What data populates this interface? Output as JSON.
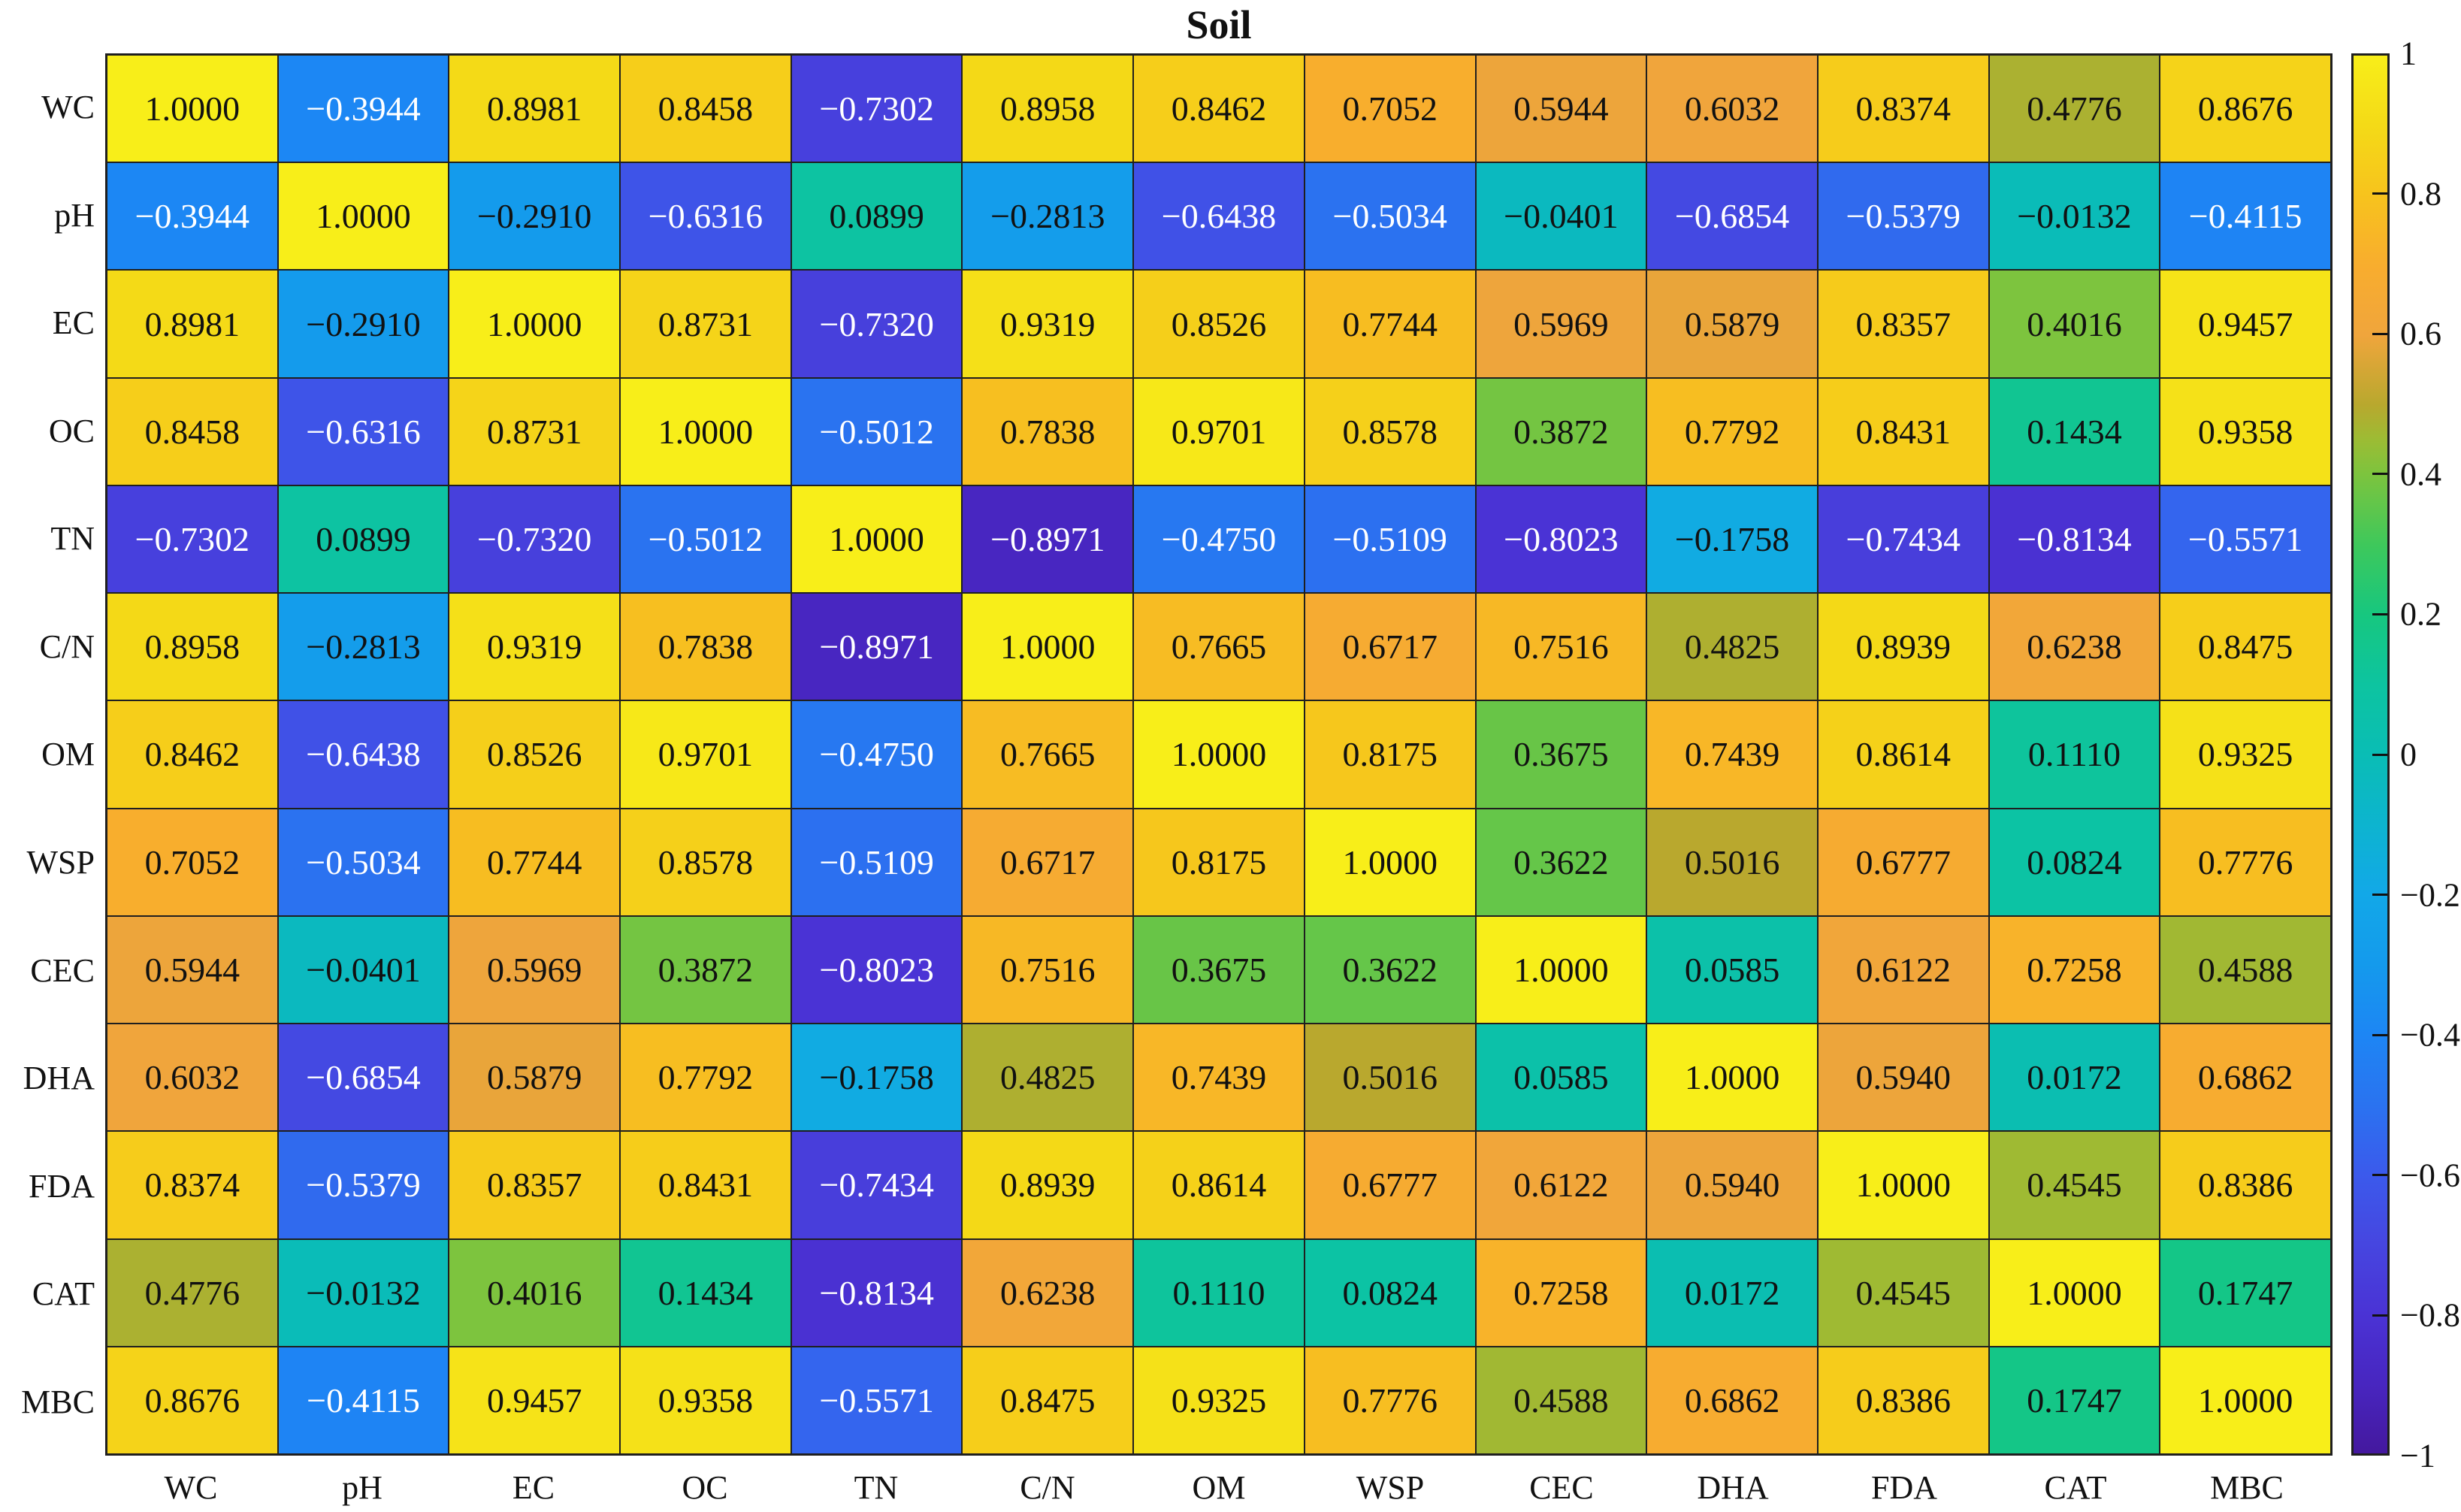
{
  "title": "Soil",
  "chart_data": {
    "type": "heatmap",
    "title": "Soil",
    "categories": [
      "WC",
      "pH",
      "EC",
      "OC",
      "TN",
      "C/N",
      "OM",
      "WSP",
      "CEC",
      "DHA",
      "FDA",
      "CAT",
      "MBC"
    ],
    "matrix": [
      [
        1.0,
        -0.3944,
        0.8981,
        0.8458,
        -0.7302,
        0.8958,
        0.8462,
        0.7052,
        0.5944,
        0.6032,
        0.8374,
        0.4776,
        0.8676
      ],
      [
        -0.3944,
        1.0,
        -0.291,
        -0.6316,
        0.0899,
        -0.2813,
        -0.6438,
        -0.5034,
        -0.0401,
        -0.6854,
        -0.5379,
        -0.0132,
        -0.4115
      ],
      [
        0.8981,
        -0.291,
        1.0,
        0.8731,
        -0.732,
        0.9319,
        0.8526,
        0.7744,
        0.5969,
        0.5879,
        0.8357,
        0.4016,
        0.9457
      ],
      [
        0.8458,
        -0.6316,
        0.8731,
        1.0,
        -0.5012,
        0.7838,
        0.9701,
        0.8578,
        0.3872,
        0.7792,
        0.8431,
        0.1434,
        0.9358
      ],
      [
        -0.7302,
        0.0899,
        -0.732,
        -0.5012,
        1.0,
        -0.8971,
        -0.475,
        -0.5109,
        -0.8023,
        -0.1758,
        -0.7434,
        -0.8134,
        -0.5571
      ],
      [
        0.8958,
        -0.2813,
        0.9319,
        0.7838,
        -0.8971,
        1.0,
        0.7665,
        0.6717,
        0.7516,
        0.4825,
        0.8939,
        0.6238,
        0.8475
      ],
      [
        0.8462,
        -0.6438,
        0.8526,
        0.9701,
        -0.475,
        0.7665,
        1.0,
        0.8175,
        0.3675,
        0.7439,
        0.8614,
        0.111,
        0.9325
      ],
      [
        0.7052,
        -0.5034,
        0.7744,
        0.8578,
        -0.5109,
        0.6717,
        0.8175,
        1.0,
        0.3622,
        0.5016,
        0.6777,
        0.0824,
        0.7776
      ],
      [
        0.5944,
        -0.0401,
        0.5969,
        0.3872,
        -0.8023,
        0.7516,
        0.3675,
        0.3622,
        1.0,
        0.0585,
        0.6122,
        0.7258,
        0.4588
      ],
      [
        0.6032,
        -0.6854,
        0.5879,
        0.7792,
        -0.1758,
        0.4825,
        0.7439,
        0.5016,
        0.0585,
        1.0,
        0.594,
        0.0172,
        0.6862
      ],
      [
        0.8374,
        -0.5379,
        0.8357,
        0.8431,
        -0.7434,
        0.8939,
        0.8614,
        0.6777,
        0.6122,
        0.594,
        1.0,
        0.4545,
        0.8386
      ],
      [
        0.4776,
        -0.0132,
        0.4016,
        0.1434,
        -0.8134,
        0.6238,
        0.111,
        0.0824,
        0.7258,
        0.0172,
        0.4545,
        1.0,
        0.1747
      ],
      [
        0.8676,
        -0.4115,
        0.9457,
        0.9358,
        -0.5571,
        0.8475,
        0.9325,
        0.7776,
        0.4588,
        0.6862,
        0.8386,
        0.1747,
        1.0
      ]
    ],
    "value_decimals": 4,
    "colorbar": {
      "min": -1,
      "max": 1,
      "position": "right",
      "ticks": [
        1,
        0.8,
        0.6,
        0.4,
        0.2,
        0,
        -0.2,
        -0.4,
        -0.6,
        -0.8,
        -1
      ],
      "tick_labels": [
        "1",
        "0.8",
        "0.6",
        "0.4",
        "0.2",
        "0",
        "−0.2",
        "−0.4",
        "−0.6",
        "−0.8",
        "−1"
      ]
    },
    "colormap_stops": [
      {
        "v": 1.0,
        "color": "#f8ee19"
      },
      {
        "v": 0.9,
        "color": "#f4da17"
      },
      {
        "v": 0.8,
        "color": "#f7c31d"
      },
      {
        "v": 0.7,
        "color": "#f8ad2e"
      },
      {
        "v": 0.6,
        "color": "#f0a53c"
      },
      {
        "v": 0.5,
        "color": "#b8a82e"
      },
      {
        "v": 0.45,
        "color": "#9cbc34"
      },
      {
        "v": 0.4,
        "color": "#7cc43e"
      },
      {
        "v": 0.3,
        "color": "#3ec85b"
      },
      {
        "v": 0.2,
        "color": "#17c77f"
      },
      {
        "v": 0.1,
        "color": "#0dc4a0"
      },
      {
        "v": 0.0,
        "color": "#0abdb5"
      },
      {
        "v": -0.1,
        "color": "#0db4cf"
      },
      {
        "v": -0.2,
        "color": "#12a8e8"
      },
      {
        "v": -0.3,
        "color": "#149aec"
      },
      {
        "v": -0.4,
        "color": "#1d86f4"
      },
      {
        "v": -0.5,
        "color": "#2a73f0"
      },
      {
        "v": -0.6,
        "color": "#3b5aec"
      },
      {
        "v": -0.7,
        "color": "#4646e0"
      },
      {
        "v": -0.8,
        "color": "#4a33d5"
      },
      {
        "v": -0.9,
        "color": "#4826c0"
      },
      {
        "v": -1.0,
        "color": "#44189e"
      }
    ],
    "text_rule": {
      "white_at_or_below": -0.35,
      "black": "#111111",
      "white": "#ffffff"
    },
    "grid_line_color": "#1f1f1f",
    "background_color": "#ffffff"
  }
}
